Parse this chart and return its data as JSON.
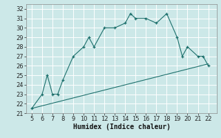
{
  "xlabel": "Humidex (Indice chaleur)",
  "bg_color": "#cce8e8",
  "grid_color": "#ffffff",
  "line_color": "#1a6e6a",
  "xlim": [
    4.5,
    22.8
  ],
  "ylim": [
    21,
    32.5
  ],
  "xticks": [
    5,
    6,
    7,
    8,
    9,
    10,
    11,
    12,
    13,
    14,
    15,
    16,
    17,
    18,
    19,
    20,
    21,
    22
  ],
  "yticks": [
    21,
    22,
    23,
    24,
    25,
    26,
    27,
    28,
    29,
    30,
    31,
    32
  ],
  "main_x": [
    5,
    6,
    6.5,
    7,
    7.5,
    8,
    9,
    10,
    10.5,
    11,
    12,
    13,
    14,
    14.5,
    15,
    16,
    17,
    18,
    19,
    19.5,
    20,
    21,
    21.5,
    22
  ],
  "main_y": [
    21.5,
    23,
    25,
    23,
    23,
    24.5,
    27,
    28,
    29,
    28,
    30,
    30,
    30.5,
    31.5,
    31,
    31,
    30.5,
    31.5,
    29,
    27,
    28,
    27,
    27,
    26
  ],
  "trend_x": [
    5,
    22
  ],
  "trend_y": [
    21.5,
    26.2
  ],
  "xlabel_fontsize": 7,
  "tick_fontsize": 6
}
